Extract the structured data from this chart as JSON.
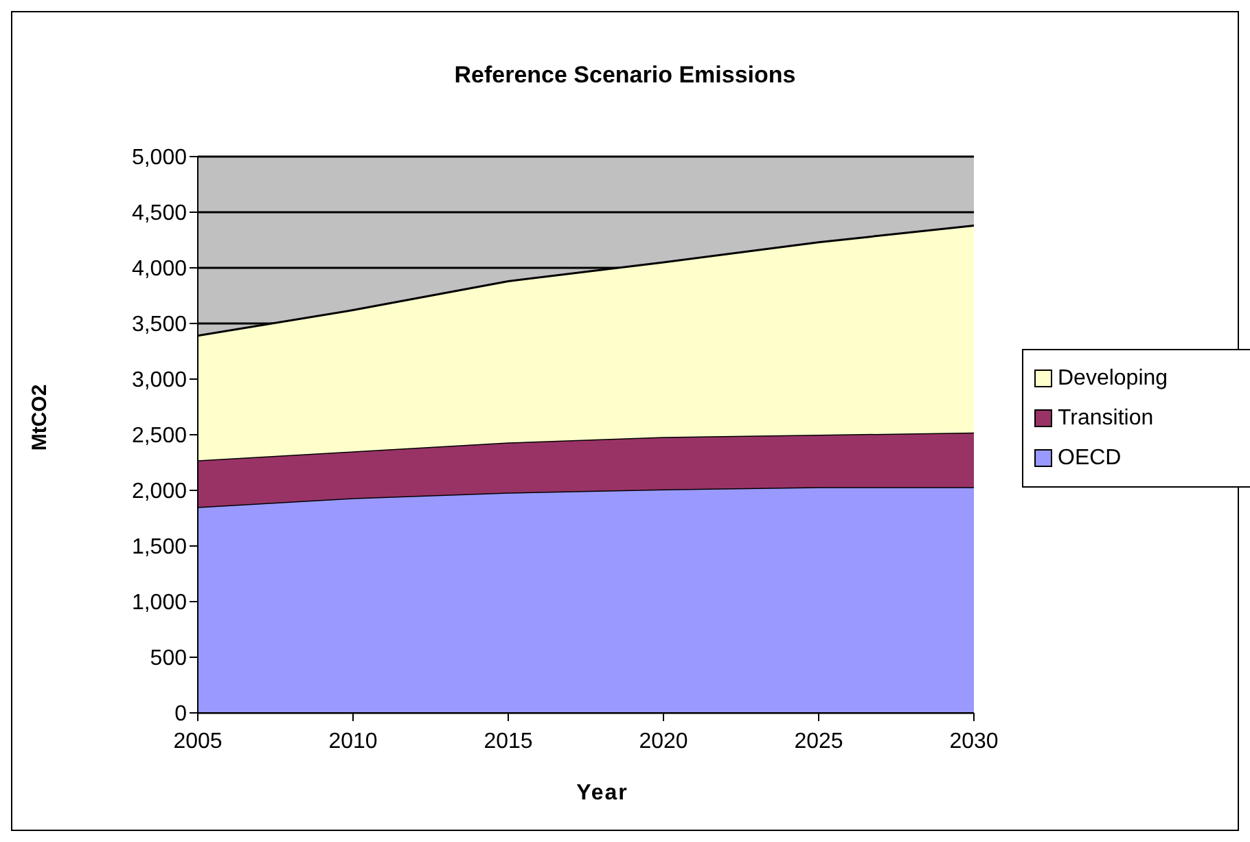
{
  "chart_data": {
    "type": "area",
    "stacked": true,
    "title": "Reference Scenario Emissions",
    "xlabel": "Year",
    "ylabel": "MtCO2",
    "x": [
      2005,
      2010,
      2015,
      2020,
      2025,
      2030
    ],
    "series": [
      {
        "name": "OECD",
        "color": "#9999ff",
        "values": [
          1850,
          1930,
          1980,
          2010,
          2030,
          2030
        ]
      },
      {
        "name": "Transition",
        "color": "#993366",
        "values": [
          420,
          420,
          450,
          470,
          470,
          490
        ]
      },
      {
        "name": "Developing",
        "color": "#ffffcc",
        "values": [
          1120,
          1270,
          1450,
          1570,
          1730,
          1860
        ]
      }
    ],
    "xlim": [
      2005,
      2030
    ],
    "xticks": [
      2005,
      2010,
      2015,
      2020,
      2025,
      2030
    ],
    "ylim": [
      0,
      5000
    ],
    "yticks": [
      0,
      500,
      {
        "value": 1000,
        "label": "1,000"
      },
      {
        "value": 1500,
        "label": "1,500"
      },
      {
        "value": 2000,
        "label": "2,000"
      },
      {
        "value": 2500,
        "label": "2,500"
      },
      {
        "value": 3000,
        "label": "3,000"
      },
      {
        "value": 3500,
        "label": "3,500"
      },
      {
        "value": 4000,
        "label": "4,000"
      },
      {
        "value": 4500,
        "label": "4,500"
      },
      {
        "value": 5000,
        "label": "5,000"
      }
    ],
    "grid": "y",
    "legend": "right"
  }
}
